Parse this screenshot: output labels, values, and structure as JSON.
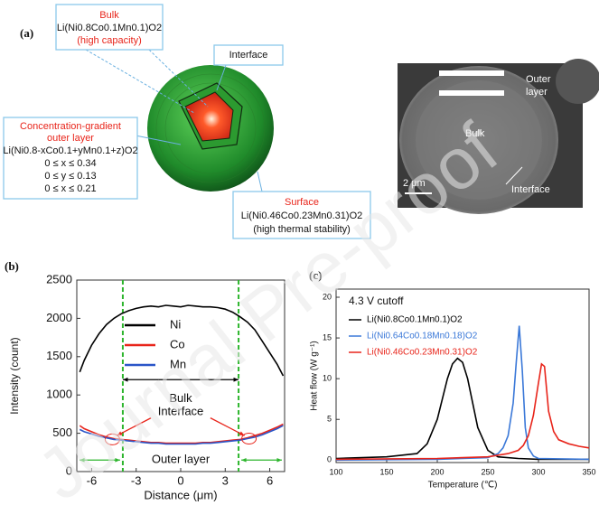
{
  "watermark": "Journal Pre-proof",
  "panel_a": {
    "label": "(a)",
    "bulk": {
      "title": "Bulk",
      "formula": "Li(Ni0.8Co0.1Mn0.1)O2",
      "note": "(high capacity)"
    },
    "interface": "Interface",
    "outer": {
      "title": [
        "Concentration-gradient",
        "outer layer"
      ],
      "formula": "Li(Ni0.8-xCo0.1+yMn0.1+z)O2",
      "ranges": [
        "0 ≤ x ≤ 0.34",
        "0 ≤ y ≤ 0.13",
        "0 ≤ x ≤ 0.21"
      ]
    },
    "surface": {
      "title": "Surface",
      "formula": "Li(Ni0.46Co0.23Mn0.31)O2",
      "note": "(high thermal stability)"
    },
    "sem": {
      "outer": [
        "Outer",
        "layer"
      ],
      "bulk": "Bulk",
      "interface": "Interface",
      "scale": "2 μm"
    }
  },
  "chart_data": [
    {
      "type": "line",
      "label": "(b)",
      "xlabel": "Distance (μm)",
      "ylabel": "Intensity (count)",
      "xlim": [
        -7,
        7
      ],
      "xticks": [
        -6,
        -3,
        0,
        3,
        6
      ],
      "ylim": [
        0,
        2500
      ],
      "yticks": [
        0,
        500,
        1000,
        1500,
        2000,
        2500
      ],
      "legend": "upper center",
      "vlines": [
        -3.9,
        3.9
      ],
      "annotations": [
        "Bulk",
        "Interface",
        "Outer layer"
      ],
      "x": [
        -6.8,
        -6.5,
        -6,
        -5.5,
        -5,
        -4.5,
        -4,
        -3.5,
        -3,
        -2.5,
        -2,
        -1.5,
        -1,
        -0.5,
        0,
        0.5,
        1,
        1.5,
        2,
        2.5,
        3,
        3.5,
        4,
        4.5,
        5,
        5.5,
        6,
        6.5,
        6.9
      ],
      "series": [
        {
          "name": "Ni",
          "color": "#000000",
          "values": [
            1300,
            1450,
            1650,
            1800,
            1920,
            2000,
            2060,
            2100,
            2130,
            2150,
            2160,
            2150,
            2170,
            2160,
            2150,
            2170,
            2160,
            2150,
            2150,
            2140,
            2120,
            2080,
            2020,
            1950,
            1850,
            1700,
            1550,
            1400,
            1250
          ]
        },
        {
          "name": "Co",
          "color": "#e8241a",
          "values": [
            600,
            560,
            520,
            480,
            450,
            430,
            420,
            410,
            400,
            390,
            380,
            380,
            370,
            370,
            370,
            370,
            370,
            380,
            380,
            390,
            400,
            410,
            420,
            440,
            470,
            500,
            540,
            580,
            620
          ]
        },
        {
          "name": "Mn",
          "color": "#2a55c8",
          "values": [
            550,
            520,
            490,
            460,
            440,
            420,
            410,
            400,
            390,
            380,
            370,
            370,
            360,
            360,
            360,
            360,
            360,
            370,
            370,
            380,
            390,
            400,
            410,
            430,
            450,
            480,
            520,
            560,
            600
          ]
        }
      ]
    },
    {
      "type": "line",
      "label": "(c)",
      "title": "4.3 V cutoff",
      "xlabel": "Temperature (℃)",
      "ylabel": "Heat flow (W g⁻¹)",
      "xlim": [
        100,
        350
      ],
      "xticks": [
        100,
        150,
        200,
        250,
        300,
        350
      ],
      "ylim": [
        -0.3,
        21
      ],
      "yticks": [
        0,
        5,
        10,
        15,
        20
      ],
      "legend": "upper left",
      "series": [
        {
          "name": "Li(Ni0.8Co0.1Mn0.1)O2",
          "color": "#000000",
          "x": [
            100,
            150,
            180,
            190,
            200,
            205,
            210,
            215,
            220,
            225,
            230,
            235,
            240,
            250,
            260,
            280,
            300,
            350
          ],
          "values": [
            0.2,
            0.4,
            0.8,
            2,
            5,
            7.5,
            10,
            11.8,
            12.5,
            12,
            10,
            7,
            4,
            1.2,
            0.4,
            0.2,
            0.1,
            0.1
          ]
        },
        {
          "name": "Li(Ni0.64Co0.18Mn0.18)O2",
          "color": "#3a78d8",
          "x": [
            100,
            200,
            250,
            260,
            265,
            270,
            275,
            278,
            281,
            284,
            287,
            290,
            295,
            300,
            350
          ],
          "values": [
            0,
            0.1,
            0.3,
            0.8,
            1.5,
            3,
            7,
            12,
            16.5,
            11,
            4,
            1.5,
            0.5,
            0.2,
            0.1
          ]
        },
        {
          "name": "Li(Ni0.46Co0.23Mn0.31)O2",
          "color": "#e8241a",
          "x": [
            100,
            200,
            250,
            270,
            280,
            285,
            290,
            295,
            300,
            303,
            306,
            310,
            315,
            320,
            330,
            340,
            350
          ],
          "values": [
            0.1,
            0.2,
            0.4,
            0.8,
            1.2,
            1.8,
            3,
            5.5,
            9.5,
            11.8,
            11.5,
            6,
            3.5,
            2.5,
            2,
            1.7,
            1.5
          ]
        }
      ]
    }
  ]
}
